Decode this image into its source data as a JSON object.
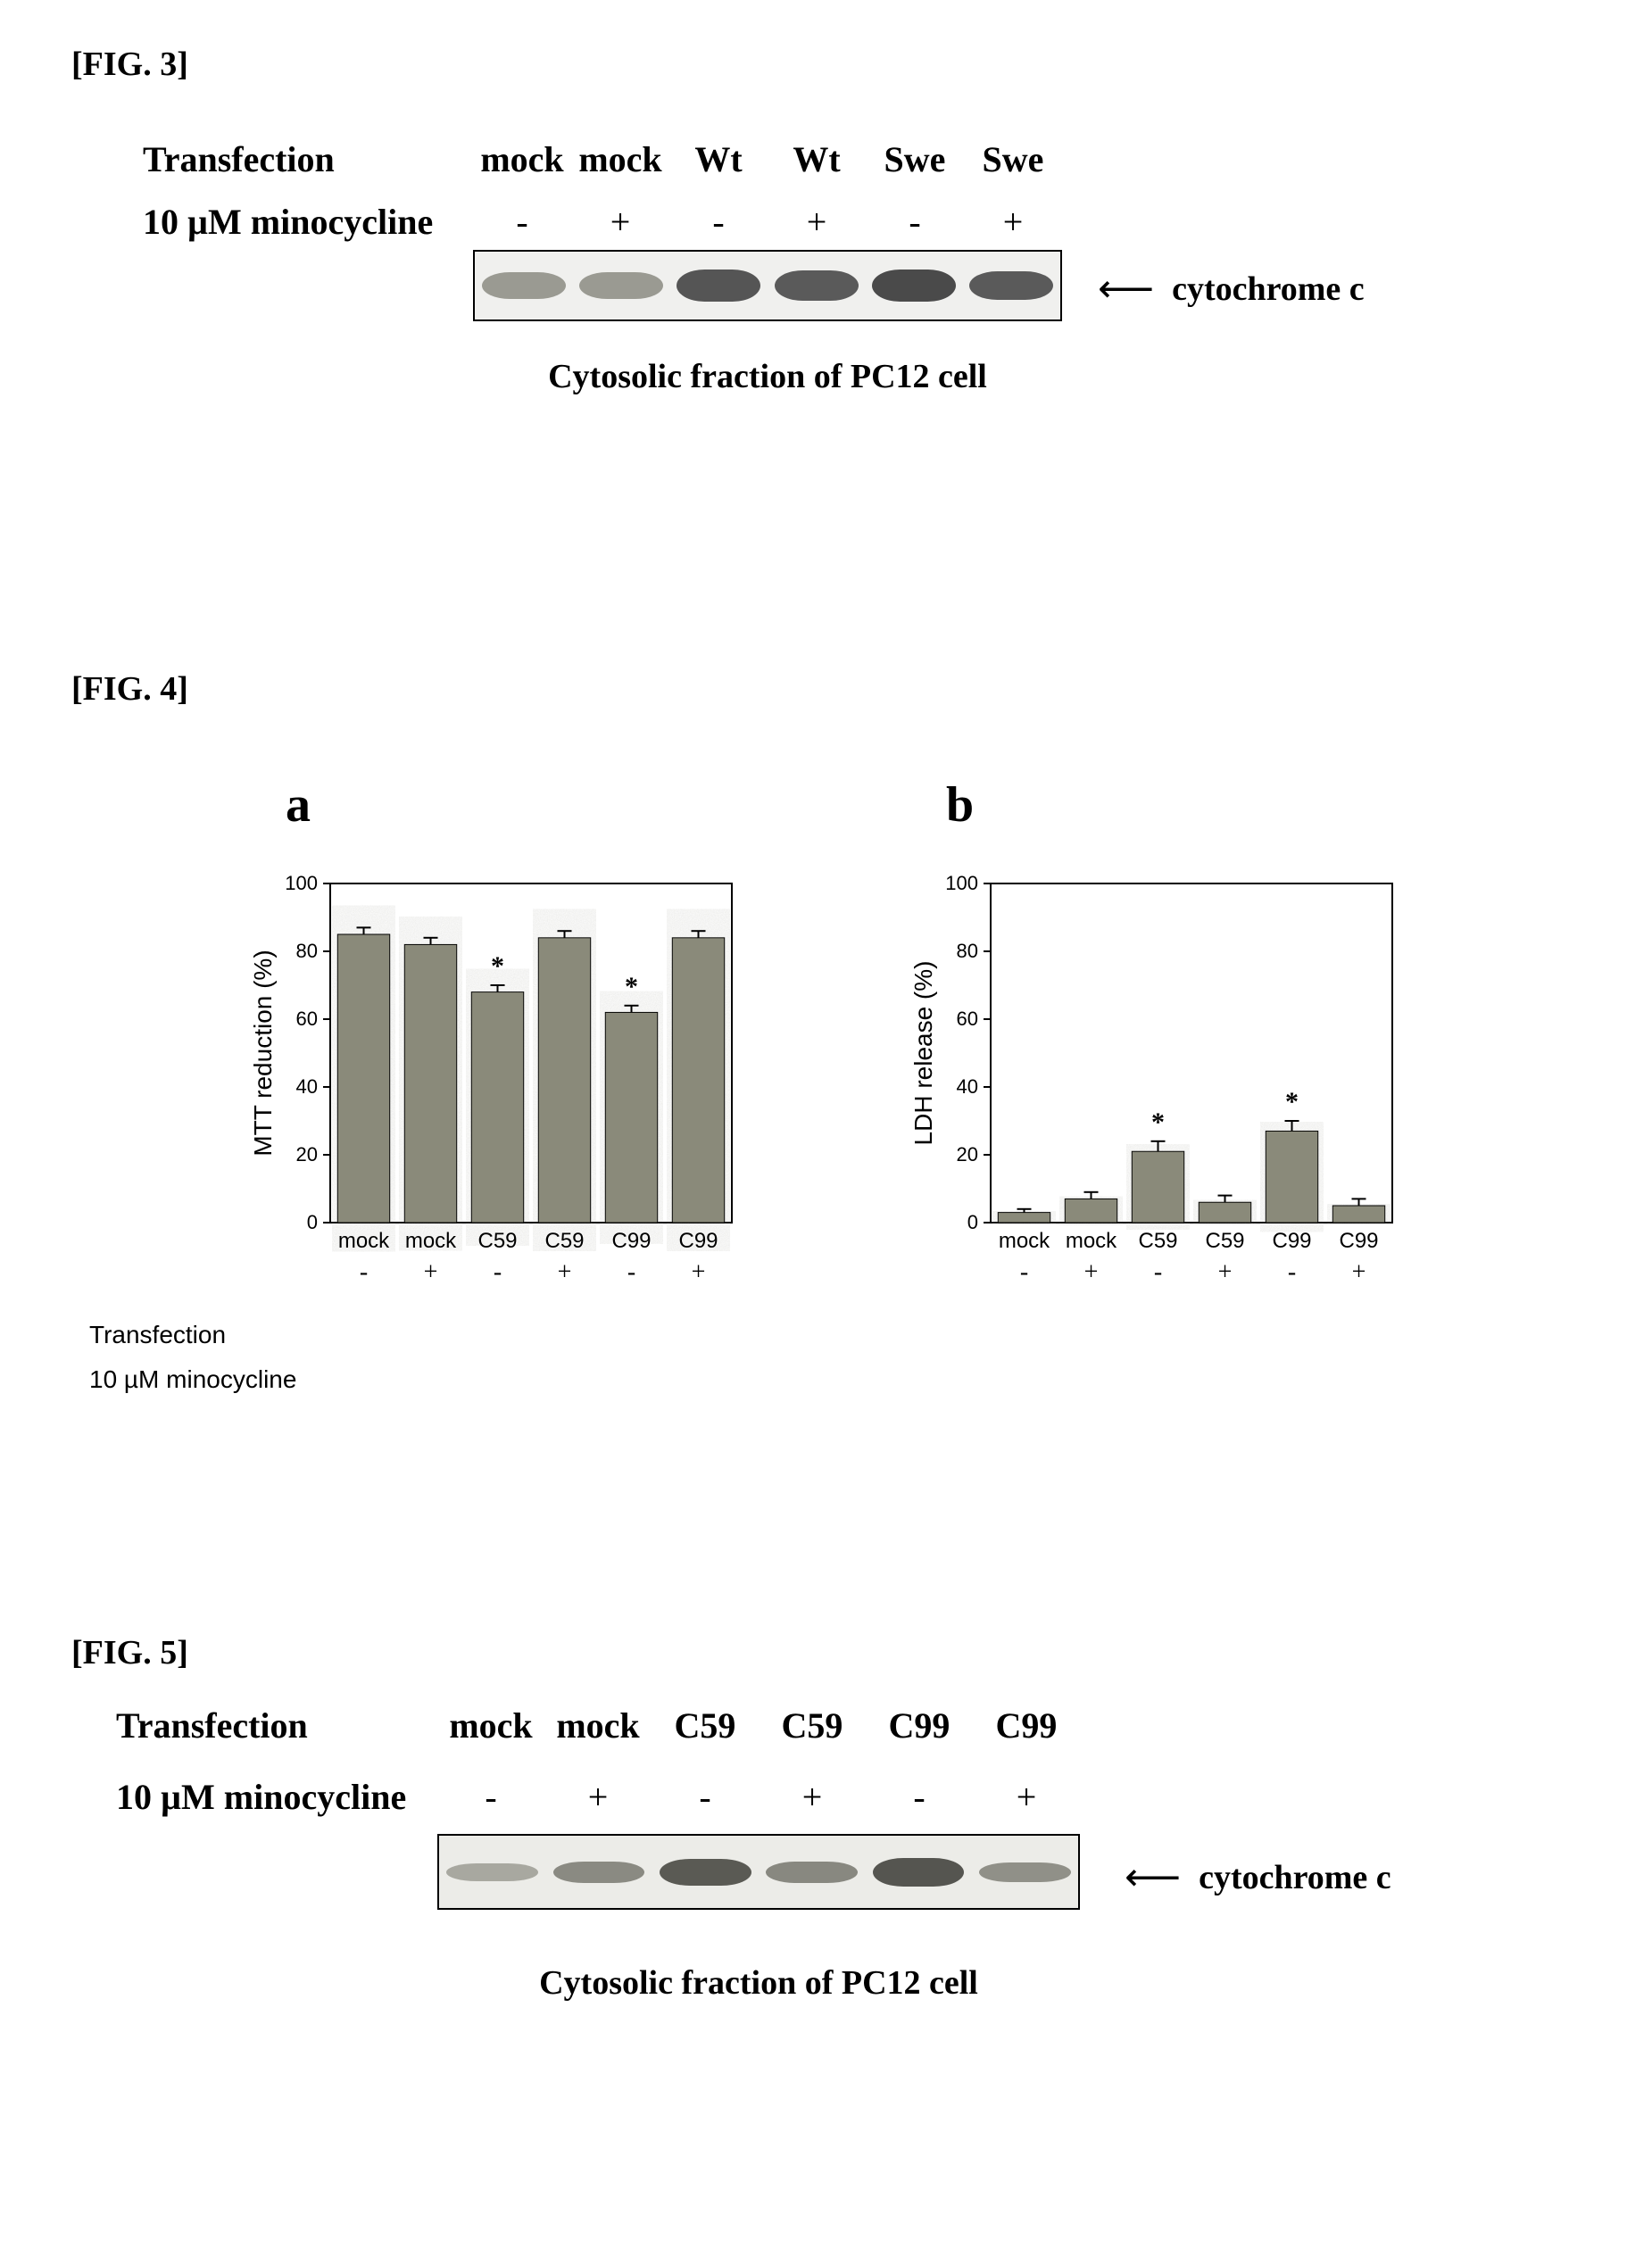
{
  "fig3": {
    "label": "[FIG. 3]",
    "row1_label": "Transfection",
    "row2_label": "10 µM minocycline",
    "lanes": [
      "mock",
      "mock",
      "Wt",
      "Wt",
      "Swe",
      "Swe"
    ],
    "pm": [
      "-",
      "+",
      "-",
      "+",
      "-",
      "+"
    ],
    "arrow_text": "cytochrome c",
    "caption": "Cytosolic fraction of PC12 cell",
    "band_intensities": [
      0.35,
      0.35,
      0.65,
      0.6,
      0.7,
      0.6
    ],
    "band_color_dark": "#555555",
    "band_color_light": "#888888",
    "blot_bg": "#f0f0ee"
  },
  "fig4": {
    "label": "[FIG. 4]",
    "panel_a": {
      "letter": "a",
      "ylabel": "MTT reduction (%)",
      "ylim": [
        0,
        100
      ],
      "ytick_step": 20,
      "categories": [
        "mock",
        "mock",
        "C59",
        "C59",
        "C99",
        "C99"
      ],
      "pm": [
        "-",
        "+",
        "-",
        "+",
        "-",
        "+"
      ],
      "values": [
        85,
        82,
        68,
        84,
        62,
        84
      ],
      "errors": [
        2,
        2,
        2,
        2,
        2,
        2
      ],
      "stars": [
        false,
        false,
        true,
        false,
        true,
        false
      ],
      "bar_color": "#8a8a7a",
      "bar_width": 0.78,
      "axis_color": "#000000",
      "label_fontsize": 28,
      "tick_fontsize": 22,
      "type": "bar"
    },
    "panel_b": {
      "letter": "b",
      "ylabel": "LDH release (%)",
      "ylim": [
        0,
        100
      ],
      "ytick_step": 20,
      "categories": [
        "mock",
        "mock",
        "C59",
        "C59",
        "C99",
        "C99"
      ],
      "pm": [
        "-",
        "+",
        "-",
        "+",
        "-",
        "+"
      ],
      "values": [
        3,
        7,
        21,
        6,
        27,
        5
      ],
      "errors": [
        1,
        2,
        3,
        2,
        3,
        2
      ],
      "stars": [
        false,
        false,
        true,
        false,
        true,
        false
      ],
      "bar_color": "#8a8a7a",
      "bar_width": 0.78,
      "axis_color": "#000000",
      "label_fontsize": 28,
      "tick_fontsize": 22,
      "type": "bar"
    },
    "row1_label": "Transfection",
    "row2_label": "10 µM minocycline"
  },
  "fig5": {
    "label": "[FIG. 5]",
    "row1_label": "Transfection",
    "row2_label": "10 µM minocycline",
    "lanes": [
      "mock",
      "mock",
      "C59",
      "C59",
      "C99",
      "C99"
    ],
    "pm": [
      "-",
      "+",
      "-",
      "+",
      "-",
      "+"
    ],
    "arrow_text": "cytochrome c",
    "caption": "Cytosolic fraction of PC12 cell",
    "band_intensities": [
      0.25,
      0.35,
      0.55,
      0.4,
      0.6,
      0.35
    ],
    "band_color_dark": "#555555",
    "blot_bg": "#ecece8"
  },
  "colors": {
    "text": "#000000",
    "background": "#ffffff"
  }
}
